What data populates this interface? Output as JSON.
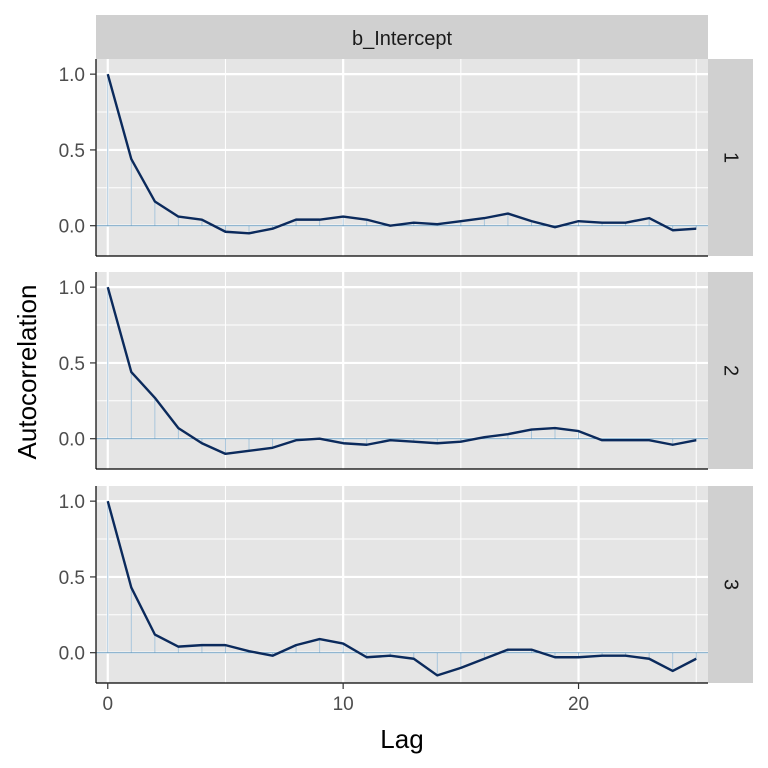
{
  "chart_data": {
    "type": "line",
    "facet_title": "b_Intercept",
    "xlabel": "Lag",
    "ylabel": "Autocorrelation",
    "xlim": [
      -0.5,
      25.5
    ],
    "ylim": [
      -0.2,
      1.1
    ],
    "x_ticks": [
      0,
      10,
      20
    ],
    "x_tick_labels": [
      "0",
      "10",
      "20"
    ],
    "y_ticks": [
      0,
      0.5,
      1
    ],
    "y_tick_labels": [
      "0.0",
      "0.5",
      "1.0"
    ],
    "grid": true,
    "colors": {
      "panel_bg": "#e5e5e5",
      "strip_bg": "#d0d0d0",
      "line": "#0b2a5c",
      "bars": "#a9c6dc",
      "zero_line": "#6d9ec0",
      "grid": "#ffffff"
    },
    "x": [
      0,
      1,
      2,
      3,
      4,
      5,
      6,
      7,
      8,
      9,
      10,
      11,
      12,
      13,
      14,
      15,
      16,
      17,
      18,
      19,
      20,
      21,
      22,
      23,
      24,
      25
    ],
    "panels": [
      {
        "chain": "1",
        "values": [
          1.0,
          0.44,
          0.16,
          0.06,
          0.04,
          -0.04,
          -0.05,
          -0.02,
          0.04,
          0.04,
          0.06,
          0.04,
          0.0,
          0.02,
          0.01,
          0.03,
          0.05,
          0.08,
          0.03,
          -0.01,
          0.03,
          0.02,
          0.02,
          0.05,
          -0.03,
          -0.02
        ]
      },
      {
        "chain": "2",
        "values": [
          1.0,
          0.44,
          0.27,
          0.07,
          -0.03,
          -0.1,
          -0.08,
          -0.06,
          -0.01,
          0.0,
          -0.03,
          -0.04,
          -0.01,
          -0.02,
          -0.03,
          -0.02,
          0.01,
          0.03,
          0.06,
          0.07,
          0.05,
          -0.01,
          -0.01,
          -0.01,
          -0.04,
          -0.01
        ]
      },
      {
        "chain": "3",
        "values": [
          1.0,
          0.43,
          0.12,
          0.04,
          0.05,
          0.05,
          0.01,
          -0.02,
          0.05,
          0.09,
          0.06,
          -0.03,
          -0.02,
          -0.04,
          -0.15,
          -0.1,
          -0.04,
          0.02,
          0.02,
          -0.03,
          -0.03,
          -0.02,
          -0.02,
          -0.04,
          -0.12,
          -0.04
        ]
      }
    ]
  }
}
